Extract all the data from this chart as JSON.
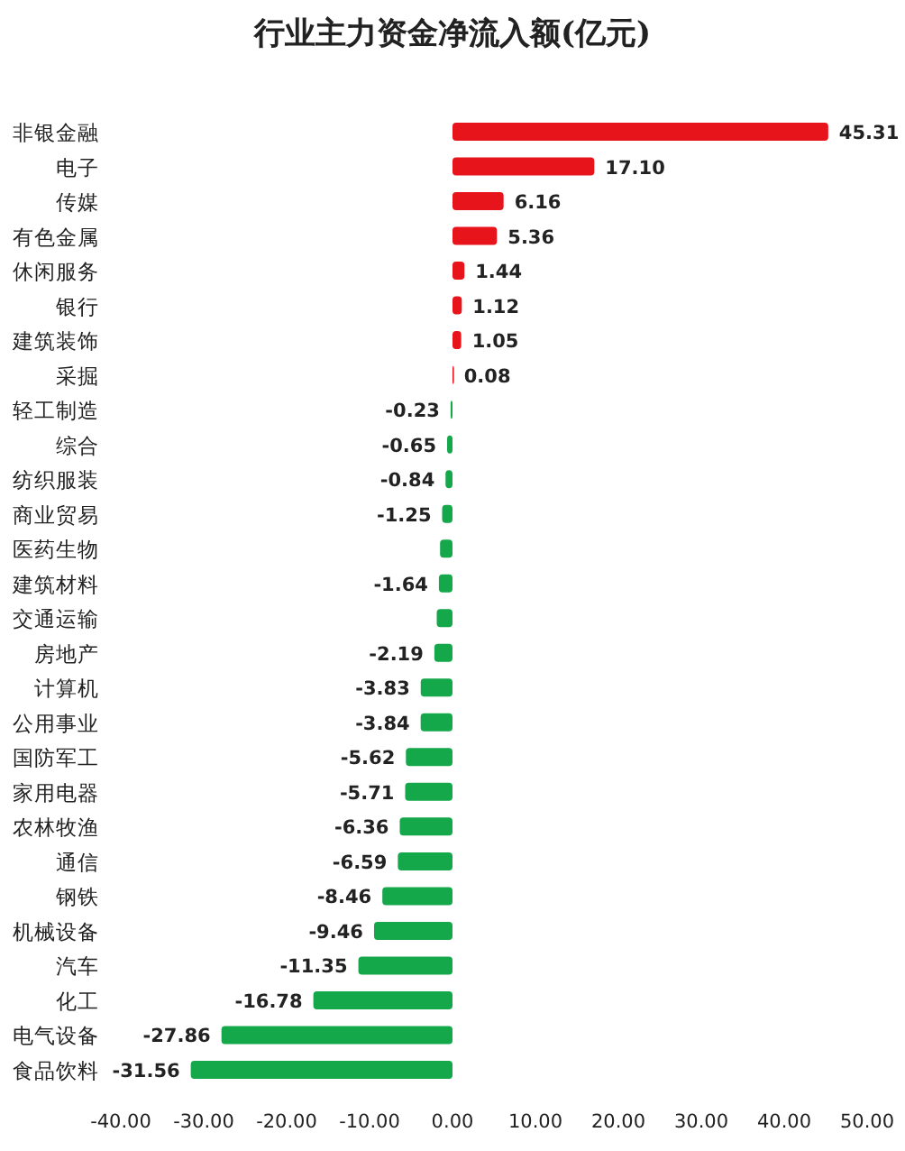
{
  "chart_data": {
    "type": "bar",
    "orientation": "horizontal",
    "title": "行业主力资金净流入额(亿元)",
    "categories": [
      "非银金融",
      "电子",
      "传媒",
      "有色金属",
      "休闲服务",
      "银行",
      "建筑装饰",
      "采掘",
      "轻工制造",
      "综合",
      "纺织服装",
      "商业贸易",
      "医药生物",
      "建筑材料",
      "交通运输",
      "房地产",
      "计算机",
      "公用事业",
      "国防军工",
      "家用电器",
      "农林牧渔",
      "通信",
      "钢铁",
      "机械设备",
      "汽车",
      "化工",
      "电气设备",
      "食品饮料"
    ],
    "values": [
      45.31,
      17.1,
      6.16,
      5.36,
      1.44,
      1.12,
      1.05,
      0.08,
      -0.23,
      -0.65,
      -0.84,
      -1.25,
      -1.5,
      -1.64,
      -1.9,
      -2.19,
      -3.83,
      -3.84,
      -5.62,
      -5.71,
      -6.36,
      -6.59,
      -8.46,
      -9.46,
      -11.35,
      -16.78,
      -27.86,
      -31.56
    ],
    "value_labels": [
      "45.31",
      "17.10",
      "6.16",
      "5.36",
      "1.44",
      "1.12",
      "1.05",
      "0.08",
      "-0.23",
      "-0.65",
      "-0.84",
      "-1.25",
      null,
      "-1.64",
      null,
      "-2.19",
      "-3.83",
      "-3.84",
      "-5.62",
      "-5.71",
      "-6.36",
      "-6.59",
      "-8.46",
      "-9.46",
      "-11.35",
      "-16.78",
      "-27.86",
      "-31.56"
    ],
    "colors": [
      "#e8141b",
      "#e8141b",
      "#e8141b",
      "#e8141b",
      "#e8141b",
      "#e8141b",
      "#e8141b",
      "#e8141b",
      "#14a84a",
      "#14a84a",
      "#14a84a",
      "#14a84a",
      "#14a84a",
      "#14a84a",
      "#14a84a",
      "#14a84a",
      "#14a84a",
      "#14a84a",
      "#14a84a",
      "#14a84a",
      "#14a84a",
      "#14a84a",
      "#14a84a",
      "#14a84a",
      "#14a84a",
      "#14a84a",
      "#14a84a",
      "#14a84a"
    ],
    "xlim": [
      -40,
      50
    ],
    "xticks": [
      {
        "value": -40,
        "label": "-40.00"
      },
      {
        "value": -30,
        "label": "-30.00"
      },
      {
        "value": -20,
        "label": "-20.00"
      },
      {
        "value": -10,
        "label": "-10.00"
      },
      {
        "value": 0,
        "label": "0.00"
      },
      {
        "value": 10,
        "label": "10.00"
      },
      {
        "value": 20,
        "label": "20.00"
      },
      {
        "value": 30,
        "label": "30.00"
      },
      {
        "value": 40,
        "label": "40.00"
      },
      {
        "value": 50,
        "label": "50.00"
      }
    ]
  }
}
